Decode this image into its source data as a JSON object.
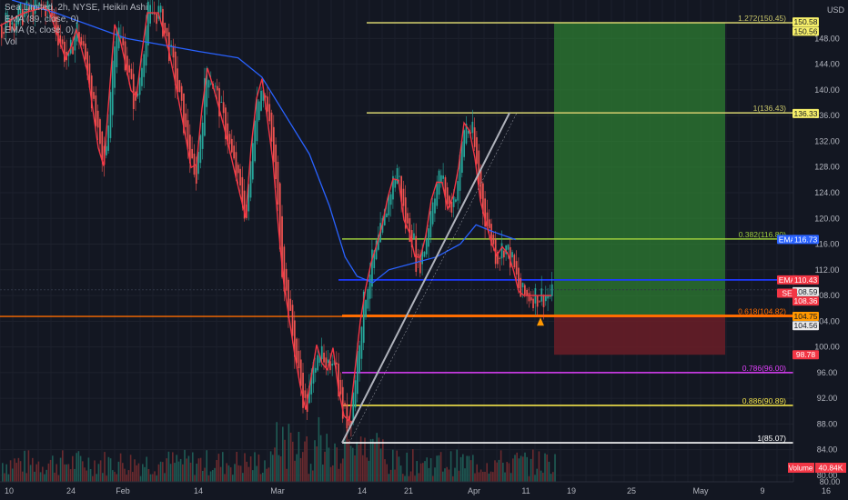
{
  "legend": {
    "title": "Sea Limited, 2h, NYSE, Heikin Ashi",
    "ema1": "EMA (89, close, 0)",
    "ema2": "EMA (8, close, 0)",
    "vol": "Vol"
  },
  "currency": "USD",
  "colors": {
    "background": "#131722",
    "bull": "#26a69a",
    "bear": "#ef5350",
    "ema89": "#2962ff",
    "ema8": "#f23645",
    "target_zone": "#2e7d32",
    "stop_zone": "#6b1d27"
  },
  "chart_data": {
    "type": "candlestick",
    "price_axis": {
      "ylim": [
        79,
        154
      ],
      "ticks": [
        80.0,
        84.0,
        88.0,
        92.0,
        96.0,
        100.0,
        104.0,
        108.0,
        112.0,
        116.0,
        120.0,
        124.0,
        128.0,
        132.0,
        136.0,
        140.0,
        144.0,
        148.0
      ]
    },
    "time_axis": {
      "labels": [
        "10",
        "24",
        "Feb",
        "14",
        "Mar",
        "14",
        "21",
        "Apr",
        "11",
        "19",
        "25",
        "May",
        "9",
        "16"
      ]
    },
    "fib_levels": [
      {
        "label": "1.272(150.45)",
        "value": 150.45,
        "color": "#c9c66a"
      },
      {
        "label": "1(136.43)",
        "value": 136.43,
        "color": "#c9c66a"
      },
      {
        "label": "0.382(116.80)",
        "value": 116.8,
        "color": "#9ccc3c"
      },
      {
        "label": "0.618(104.82)",
        "value": 104.82,
        "color": "#ff6d00"
      },
      {
        "label": "0.786(96.00)",
        "value": 96.0,
        "color": "#e040fb"
      },
      {
        "label": "0.886(90.89)",
        "value": 90.89,
        "color": "#f2e34a"
      },
      {
        "label": "1(85.07)",
        "value": 85.07,
        "color": "#ffffff"
      }
    ],
    "price_labels": [
      {
        "text": "150.58",
        "value": 150.58,
        "bg": "#f7f06a",
        "fg": "#131722"
      },
      {
        "text": "150.56",
        "value": 150.56,
        "bg": "#f7f06a",
        "fg": "#131722"
      },
      {
        "text": "136.33",
        "value": 136.33,
        "bg": "#f7f06a",
        "fg": "#131722"
      },
      {
        "text": "EMA",
        "value": 116.73,
        "bg": "#2962ff",
        "fg": "#ffffff",
        "tag": true
      },
      {
        "text": "116.73",
        "value": 116.73,
        "bg": "#2962ff",
        "fg": "#ffffff"
      },
      {
        "text": "EMA",
        "value": 110.43,
        "bg": "#f23645",
        "fg": "#ffffff",
        "tag": true
      },
      {
        "text": "110.43",
        "value": 110.43,
        "bg": "#f23645",
        "fg": "#ffffff"
      },
      {
        "text": "108.59",
        "value": 108.59,
        "bg": "#e8e8e8",
        "fg": "#131722"
      },
      {
        "text": "SE",
        "value": 108.36,
        "bg": "#f23645",
        "fg": "#ffffff",
        "tag": true
      },
      {
        "text": "108.36",
        "value": 108.36,
        "bg": "#f23645",
        "fg": "#ffffff"
      },
      {
        "text": "104.75",
        "value": 104.75,
        "bg": "#ff9800",
        "fg": "#131722"
      },
      {
        "text": "104.56",
        "value": 104.56,
        "bg": "#e8e8e8",
        "fg": "#131722"
      },
      {
        "text": "98.78",
        "value": 98.78,
        "bg": "#f23645",
        "fg": "#ffffff"
      }
    ],
    "volume_label": {
      "tag": "Volume",
      "value": "40.84K"
    },
    "position": {
      "entry": 104.75,
      "target": 150.56,
      "stop": 98.78
    },
    "ema89": [
      {
        "x": 0.015,
        "y": 154
      },
      {
        "x": 0.07,
        "y": 152
      },
      {
        "x": 0.16,
        "y": 148
      },
      {
        "x": 0.25,
        "y": 146
      },
      {
        "x": 0.3,
        "y": 145
      },
      {
        "x": 0.33,
        "y": 142
      },
      {
        "x": 0.36,
        "y": 136
      },
      {
        "x": 0.39,
        "y": 130
      },
      {
        "x": 0.415,
        "y": 122
      },
      {
        "x": 0.435,
        "y": 114
      },
      {
        "x": 0.45,
        "y": 111
      },
      {
        "x": 0.47,
        "y": 110
      },
      {
        "x": 0.49,
        "y": 112
      },
      {
        "x": 0.52,
        "y": 113
      },
      {
        "x": 0.55,
        "y": 114
      },
      {
        "x": 0.58,
        "y": 116
      },
      {
        "x": 0.6,
        "y": 119
      },
      {
        "x": 0.62,
        "y": 118
      },
      {
        "x": 0.65,
        "y": 116.7
      }
    ],
    "price_path": [
      {
        "x": 0.0,
        "y": 150
      },
      {
        "x": 0.03,
        "y": 152
      },
      {
        "x": 0.06,
        "y": 153
      },
      {
        "x": 0.085,
        "y": 144
      },
      {
        "x": 0.095,
        "y": 150
      },
      {
        "x": 0.11,
        "y": 143
      },
      {
        "x": 0.125,
        "y": 130
      },
      {
        "x": 0.13,
        "y": 127
      },
      {
        "x": 0.145,
        "y": 151
      },
      {
        "x": 0.155,
        "y": 146
      },
      {
        "x": 0.17,
        "y": 137
      },
      {
        "x": 0.185,
        "y": 152
      },
      {
        "x": 0.2,
        "y": 152
      },
      {
        "x": 0.215,
        "y": 145
      },
      {
        "x": 0.235,
        "y": 132
      },
      {
        "x": 0.245,
        "y": 125
      },
      {
        "x": 0.26,
        "y": 144
      },
      {
        "x": 0.27,
        "y": 140
      },
      {
        "x": 0.285,
        "y": 133
      },
      {
        "x": 0.3,
        "y": 125
      },
      {
        "x": 0.31,
        "y": 120
      },
      {
        "x": 0.32,
        "y": 137
      },
      {
        "x": 0.33,
        "y": 142
      },
      {
        "x": 0.345,
        "y": 128
      },
      {
        "x": 0.355,
        "y": 112
      },
      {
        "x": 0.365,
        "y": 104
      },
      {
        "x": 0.375,
        "y": 96
      },
      {
        "x": 0.385,
        "y": 90
      },
      {
        "x": 0.4,
        "y": 101
      },
      {
        "x": 0.41,
        "y": 95
      },
      {
        "x": 0.42,
        "y": 100
      },
      {
        "x": 0.43,
        "y": 90
      },
      {
        "x": 0.44,
        "y": 88
      },
      {
        "x": 0.455,
        "y": 105
      },
      {
        "x": 0.465,
        "y": 112
      },
      {
        "x": 0.48,
        "y": 118
      },
      {
        "x": 0.49,
        "y": 124
      },
      {
        "x": 0.5,
        "y": 128
      },
      {
        "x": 0.51,
        "y": 119
      },
      {
        "x": 0.52,
        "y": 117
      },
      {
        "x": 0.525,
        "y": 112
      },
      {
        "x": 0.535,
        "y": 116
      },
      {
        "x": 0.545,
        "y": 124
      },
      {
        "x": 0.555,
        "y": 127
      },
      {
        "x": 0.565,
        "y": 121
      },
      {
        "x": 0.575,
        "y": 125
      },
      {
        "x": 0.585,
        "y": 135
      },
      {
        "x": 0.595,
        "y": 133
      },
      {
        "x": 0.605,
        "y": 123
      },
      {
        "x": 0.615,
        "y": 118
      },
      {
        "x": 0.625,
        "y": 114
      },
      {
        "x": 0.635,
        "y": 116
      },
      {
        "x": 0.645,
        "y": 113
      },
      {
        "x": 0.655,
        "y": 108
      }
    ]
  }
}
